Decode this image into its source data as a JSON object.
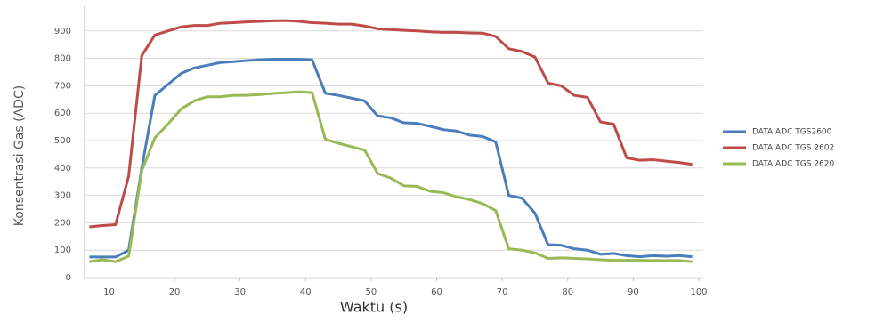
{
  "chart_data": {
    "type": "line",
    "x_label": "Waktu (s)",
    "y_label": "Konsentrasi Gas (ADC)",
    "x": [
      7,
      9,
      11,
      13,
      15,
      17,
      19,
      21,
      23,
      25,
      27,
      29,
      31,
      33,
      35,
      37,
      39,
      41,
      43,
      45,
      47,
      49,
      51,
      53,
      55,
      57,
      59,
      61,
      63,
      65,
      67,
      69,
      71,
      73,
      75,
      77,
      79,
      81,
      83,
      85,
      87,
      89,
      91,
      93,
      95,
      97,
      99
    ],
    "series": [
      {
        "name": "DATA ADC TGS2600",
        "color": "#4a7ebb",
        "values": [
          75,
          75,
          75,
          100,
          400,
          665,
          705,
          745,
          765,
          775,
          785,
          788,
          792,
          795,
          797,
          797,
          797,
          795,
          673,
          665,
          655,
          645,
          590,
          583,
          565,
          563,
          552,
          540,
          535,
          520,
          515,
          495,
          300,
          290,
          235,
          120,
          118,
          105,
          100,
          85,
          88,
          80,
          76,
          80,
          78,
          80,
          76
        ]
      },
      {
        "name": "DATA ADC TGS 2602",
        "color": "#be4b48",
        "values": [
          185,
          190,
          193,
          370,
          810,
          885,
          900,
          915,
          920,
          920,
          928,
          930,
          933,
          935,
          937,
          938,
          935,
          930,
          928,
          925,
          925,
          918,
          908,
          905,
          902,
          900,
          897,
          895,
          895,
          893,
          892,
          880,
          835,
          825,
          805,
          710,
          700,
          665,
          658,
          568,
          560,
          437,
          428,
          430,
          425,
          420,
          413
        ]
      },
      {
        "name": "DATA ADC TGS 2620",
        "color": "#98b954",
        "values": [
          58,
          65,
          58,
          78,
          390,
          510,
          560,
          615,
          645,
          660,
          660,
          665,
          665,
          668,
          672,
          675,
          678,
          675,
          505,
          490,
          478,
          465,
          380,
          363,
          335,
          333,
          315,
          310,
          295,
          285,
          270,
          245,
          105,
          100,
          90,
          70,
          72,
          70,
          68,
          65,
          63,
          63,
          63,
          62,
          62,
          62,
          58
        ]
      }
    ],
    "xlim": [
      6,
      100
    ],
    "ylim": [
      0,
      1000
    ],
    "xticks": [
      10,
      20,
      30,
      40,
      50,
      60,
      70,
      80,
      90,
      100
    ],
    "yticks": [
      0,
      100,
      200,
      300,
      400,
      500,
      600,
      700,
      800,
      900
    ],
    "grid": true
  }
}
